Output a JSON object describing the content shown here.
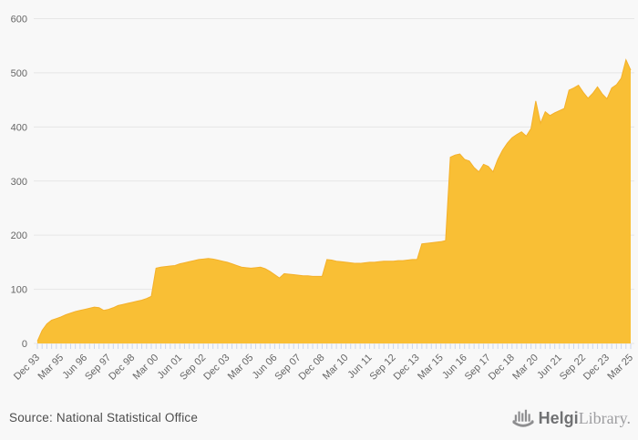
{
  "page": {
    "background": "#f8f8f8"
  },
  "footer": {
    "source_label": "Source: National Statistical Office",
    "logo": {
      "brand_bold": "Helgi",
      "brand_light": "Library."
    }
  },
  "chart_data": {
    "type": "area",
    "title": "",
    "xlabel": "",
    "ylabel": "",
    "frequency": "quarterly",
    "x_first": "Dec 93",
    "x_last": "Mar 25",
    "tick_labels": [
      "Dec 93",
      "Mar 95",
      "Jun 96",
      "Sep 97",
      "Dec 98",
      "Mar 00",
      "Jun 01",
      "Sep 02",
      "Dec 03",
      "Mar 05",
      "Jun 06",
      "Sep 07",
      "Dec 08",
      "Mar 10",
      "Jun 11",
      "Sep 12",
      "Dec 13",
      "Mar 15",
      "Jun 16",
      "Sep 17",
      "Dec 18",
      "Mar 20",
      "Jun 21",
      "Sep 22",
      "Dec 23",
      "Mar 25"
    ],
    "label_every": 5,
    "y_ticks": [
      0,
      100,
      200,
      300,
      400,
      500,
      600
    ],
    "ylim": [
      0,
      600
    ],
    "grid": "horizontal",
    "legend": "none",
    "series_color": "#f9bf35",
    "line_color": "#f4b02a",
    "grid_color": "#e6e6e6",
    "axis_tick_color": "#ccd6eb",
    "axis_label_color": "#666666",
    "values": [
      4,
      24,
      36,
      43,
      46,
      49,
      53,
      56,
      59,
      61,
      63,
      65,
      67,
      66,
      61,
      63,
      66,
      70,
      72,
      74,
      76,
      78,
      80,
      83,
      87,
      139,
      141,
      142,
      143,
      144,
      147,
      149,
      151,
      153,
      155,
      156,
      157,
      156,
      154,
      152,
      150,
      147,
      144,
      141,
      140,
      139,
      140,
      141,
      138,
      133,
      127,
      121,
      129,
      128,
      127,
      126,
      125,
      125,
      124,
      124,
      124,
      155,
      154,
      152,
      151,
      150,
      149,
      148,
      148,
      149,
      150,
      150,
      151,
      152,
      152,
      152,
      153,
      153,
      154,
      155,
      155,
      184,
      185,
      186,
      187,
      188,
      190,
      344,
      348,
      350,
      340,
      337,
      325,
      317,
      331,
      327,
      317,
      340,
      357,
      370,
      380,
      386,
      391,
      383,
      397,
      448,
      407,
      428,
      421,
      426,
      430,
      434,
      468,
      472,
      477,
      464,
      453,
      462,
      474,
      461,
      452,
      472,
      478,
      490,
      524,
      505
    ]
  }
}
